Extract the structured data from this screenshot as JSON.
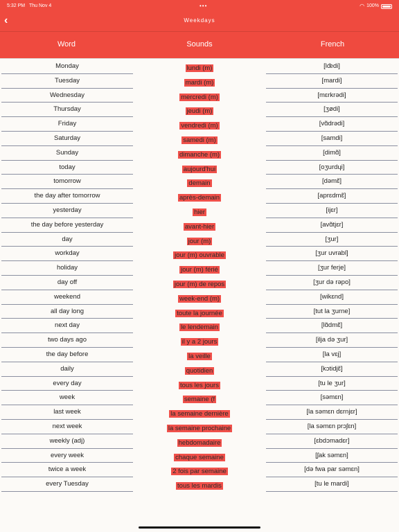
{
  "status": {
    "time": "5:32 PM",
    "date": "Thu Nov 4",
    "battery": "100%"
  },
  "nav": {
    "title": "Weekdays"
  },
  "columns": {
    "word": "Word",
    "sounds": "Sounds",
    "french": "French"
  },
  "rows": [
    {
      "word": "Monday",
      "sound": "lundi (m)",
      "french": "[lœ̃di]"
    },
    {
      "word": "Tuesday",
      "sound": "mardi (m)",
      "french": "[mardi]"
    },
    {
      "word": "Wednesday",
      "sound": "mercredi (m)",
      "french": "[mɛrkrədi]"
    },
    {
      "word": "Thursday",
      "sound": "jeudi (m)",
      "french": "[ʒødi]"
    },
    {
      "word": "Friday",
      "sound": "vendredi (m)",
      "french": "[vɑ̃drədi]"
    },
    {
      "word": "Saturday",
      "sound": "samedi (m)",
      "french": "[samdi]"
    },
    {
      "word": "Sunday",
      "sound": "dimanche (m)",
      "french": "[dimɑ̃]"
    },
    {
      "word": "today",
      "sound": "aujourd'hui",
      "french": "[oʒurdɥi]"
    },
    {
      "word": "tomorrow",
      "sound": "demain",
      "french": "[dəmɛ̃]"
    },
    {
      "word": "the day after tomorrow",
      "sound": "après-demain",
      "french": "[aprɛdmɛ̃]"
    },
    {
      "word": "yesterday",
      "sound": "hier",
      "french": "[ijɛr]"
    },
    {
      "word": "the day before yesterday",
      "sound": "avant-hier",
      "french": "[avɑ̃tjɛr]"
    },
    {
      "word": "day",
      "sound": "jour (m)",
      "french": "[ʒur]"
    },
    {
      "word": "workday",
      "sound": "jour (m) ouvrable",
      "french": "[ʒur uvrabl]"
    },
    {
      "word": "holiday",
      "sound": "jour (m) férié",
      "french": "[ʒur ferje]"
    },
    {
      "word": "day off",
      "sound": "jour (m) de repos",
      "french": "[ʒur də rəpo]"
    },
    {
      "word": "weekend",
      "sound": "week-end (m)",
      "french": "[wikɛnd]"
    },
    {
      "word": "all day long",
      "sound": "toute la journée",
      "french": "[tut la ʒurne]"
    },
    {
      "word": "next day",
      "sound": "le lendemain",
      "french": "[lɑ̃dmɛ̃]"
    },
    {
      "word": "two days ago",
      "sound": "il y a 2 jours",
      "french": "[ilja də ʒur]"
    },
    {
      "word": "the day before",
      "sound": "la veille",
      "french": "[la vɛj]"
    },
    {
      "word": "daily",
      "sound": "quotidien",
      "french": "[kɔtidjɛ̃]"
    },
    {
      "word": "every day",
      "sound": "tous les jours",
      "french": "[tu le ʒur]"
    },
    {
      "word": "week",
      "sound": "semaine (f",
      "french": "[səmɛn]"
    },
    {
      "word": "last week",
      "sound": "la semaine dernière",
      "french": "[la səmɛn dɛrnjɛr]"
    },
    {
      "word": "next week",
      "sound": "la semaine prochaine",
      "french": "[la səmɛn prɔʃɛn]"
    },
    {
      "word": "weekly (adj)",
      "sound": "hebdomadaire",
      "french": "[ɛbdɔmadɛr]"
    },
    {
      "word": "every week",
      "sound": "chaque semaine",
      "french": "[ʃak səmɛn]"
    },
    {
      "word": "twice a week",
      "sound": "2 fois par semaine",
      "french": "[də fwa par səmɛn]"
    },
    {
      "word": "every Tuesday",
      "sound": "tous les mardis",
      "french": "[tu le mardi]"
    }
  ]
}
